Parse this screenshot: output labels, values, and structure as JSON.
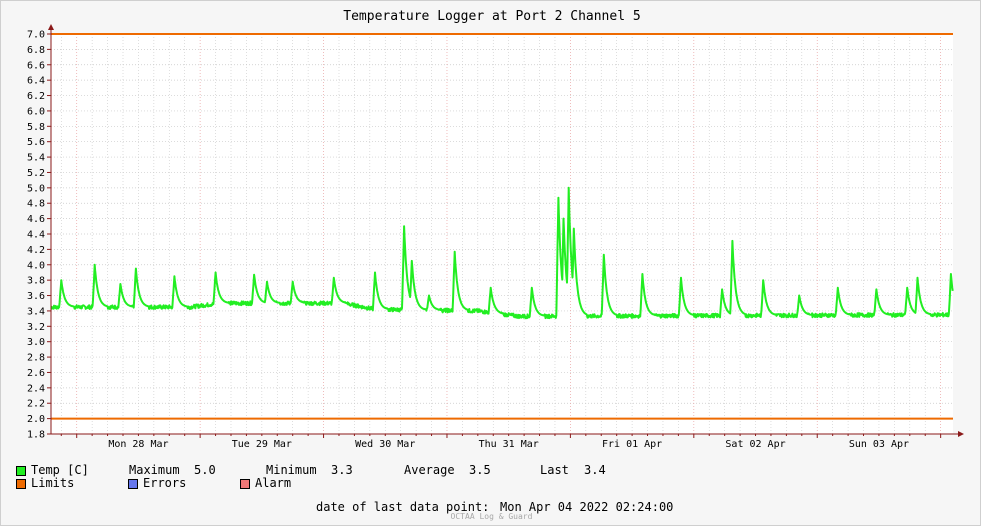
{
  "chart_data": {
    "type": "line",
    "title": "Temperature Logger at Port 2 Channel 5",
    "ylim": [
      1.8,
      7.0
    ],
    "yticks": [
      "7.0",
      "6.8",
      "6.6",
      "6.4",
      "6.2",
      "6.0",
      "5.8",
      "5.6",
      "5.4",
      "5.2",
      "5.0",
      "4.8",
      "4.6",
      "4.4",
      "4.2",
      "4.0",
      "3.8",
      "3.6",
      "3.4",
      "3.2",
      "3.0",
      "2.8",
      "2.6",
      "2.4",
      "2.2",
      "2.0",
      "1.8"
    ],
    "xlim": [
      "2022-03-27T19:00",
      "2022-04-04T02:24"
    ],
    "xticks": [
      {
        "label": "Mon 28 Mar",
        "at": "2022-03-28T12:00"
      },
      {
        "label": "Tue 29 Mar",
        "at": "2022-03-29T12:00"
      },
      {
        "label": "Wed 30 Mar",
        "at": "2022-03-30T12:00"
      },
      {
        "label": "Thu 31 Mar",
        "at": "2022-03-31T12:00"
      },
      {
        "label": "Fri 01 Apr",
        "at": "2022-04-01T12:00"
      },
      {
        "label": "Sat 02 Apr",
        "at": "2022-04-02T12:00"
      },
      {
        "label": "Sun 03 Apr",
        "at": "2022-04-03T12:00"
      }
    ],
    "grid": true,
    "limits": {
      "upper": 7.0,
      "lower": 2.0
    },
    "colors": {
      "temp": "#22ee22",
      "limits": "#ee6a00",
      "errors": "#6677ee",
      "alarm": "#ee7777",
      "grid_major": "#e8a0a0",
      "grid_minor": "#c8c8c8",
      "axis": "#8b1a1a"
    },
    "series": [
      {
        "name": "Temp [C]",
        "baseline": [
          {
            "x": "2022-03-27T19:00",
            "y": 3.45
          },
          {
            "x": "2022-03-28T22:00",
            "y": 3.45
          },
          {
            "x": "2022-03-29T04:00",
            "y": 3.5
          },
          {
            "x": "2022-03-30T04:00",
            "y": 3.5
          },
          {
            "x": "2022-03-30T10:00",
            "y": 3.42
          },
          {
            "x": "2022-03-31T06:00",
            "y": 3.4
          },
          {
            "x": "2022-03-31T14:00",
            "y": 3.33
          },
          {
            "x": "2022-04-04T02:24",
            "y": 3.35
          }
        ],
        "peaks": [
          {
            "x": "2022-03-27T21:00",
            "y": 3.8
          },
          {
            "x": "2022-03-28T03:30",
            "y": 4.0
          },
          {
            "x": "2022-03-28T08:30",
            "y": 3.75
          },
          {
            "x": "2022-03-28T11:30",
            "y": 3.95
          },
          {
            "x": "2022-03-28T19:00",
            "y": 3.85
          },
          {
            "x": "2022-03-29T03:00",
            "y": 3.9
          },
          {
            "x": "2022-03-29T10:30",
            "y": 3.87
          },
          {
            "x": "2022-03-29T13:00",
            "y": 3.78
          },
          {
            "x": "2022-03-29T18:00",
            "y": 3.78
          },
          {
            "x": "2022-03-30T02:00",
            "y": 3.83
          },
          {
            "x": "2022-03-30T10:00",
            "y": 3.9
          },
          {
            "x": "2022-03-30T15:40",
            "y": 4.5
          },
          {
            "x": "2022-03-30T17:10",
            "y": 4.05
          },
          {
            "x": "2022-03-30T20:30",
            "y": 3.6
          },
          {
            "x": "2022-03-31T01:30",
            "y": 4.17
          },
          {
            "x": "2022-03-31T08:30",
            "y": 3.7
          },
          {
            "x": "2022-03-31T16:30",
            "y": 3.7
          },
          {
            "x": "2022-03-31T21:40",
            "y": 4.87
          },
          {
            "x": "2022-03-31T22:40",
            "y": 4.6
          },
          {
            "x": "2022-03-31T23:40",
            "y": 5.0
          },
          {
            "x": "2022-04-01T00:40",
            "y": 4.47
          },
          {
            "x": "2022-04-01T06:30",
            "y": 4.13
          },
          {
            "x": "2022-04-01T14:00",
            "y": 3.88
          },
          {
            "x": "2022-04-01T21:30",
            "y": 3.83
          },
          {
            "x": "2022-04-02T05:30",
            "y": 3.68
          },
          {
            "x": "2022-04-02T07:30",
            "y": 4.31
          },
          {
            "x": "2022-04-02T13:30",
            "y": 3.8
          },
          {
            "x": "2022-04-02T20:30",
            "y": 3.6
          },
          {
            "x": "2022-04-03T04:00",
            "y": 3.7
          },
          {
            "x": "2022-04-03T11:30",
            "y": 3.68
          },
          {
            "x": "2022-04-03T17:30",
            "y": 3.7
          },
          {
            "x": "2022-04-03T19:30",
            "y": 3.83
          },
          {
            "x": "2022-04-04T02:00",
            "y": 3.88
          }
        ]
      }
    ]
  },
  "legend": {
    "temp_label": "Temp [C]",
    "max_label": "Maximum",
    "max_value": "5.0",
    "min_label": "Minimum",
    "min_value": "3.3",
    "avg_label": "Average",
    "avg_value": "3.5",
    "last_label": "Last",
    "last_value": "3.4",
    "limits_label": "Limits",
    "errors_label": "Errors",
    "alarm_label": "Alarm"
  },
  "footer": {
    "last_point_label": "date of last data point:",
    "last_point_value": "Mon Apr 04 2022 02:24:00",
    "watermark": "OCTAA Log & Guard"
  }
}
